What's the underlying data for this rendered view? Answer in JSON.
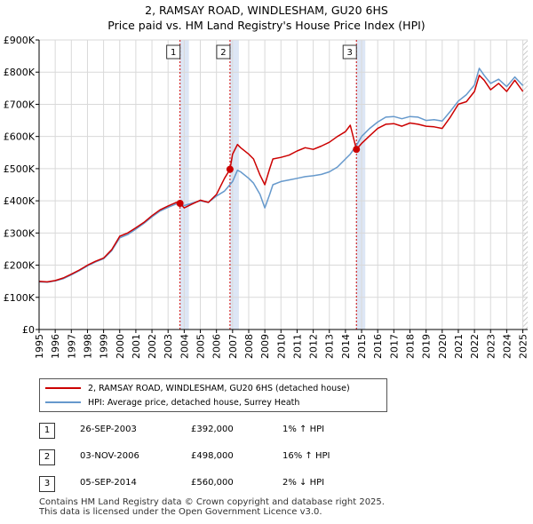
{
  "title": "2, RAMSAY ROAD, WINDLESHAM, GU20 6HS",
  "subtitle": "Price paid vs. HM Land Registry's House Price Index (HPI)",
  "chart_data": {
    "type": "line",
    "title": "2, RAMSAY ROAD, WINDLESHAM, GU20 6HS",
    "xlabel": "",
    "ylabel": "",
    "xlim": [
      1995,
      2025.3
    ],
    "ylim": [
      0,
      900000
    ],
    "y_ticks": [
      0,
      100000,
      200000,
      300000,
      400000,
      500000,
      600000,
      700000,
      800000,
      900000
    ],
    "y_tick_labels": [
      "£0",
      "£100K",
      "£200K",
      "£300K",
      "£400K",
      "£500K",
      "£600K",
      "£700K",
      "£800K",
      "£900K"
    ],
    "x_ticks": [
      "1995",
      "1996",
      "1997",
      "1998",
      "1999",
      "2000",
      "2001",
      "2002",
      "2003",
      "2004",
      "2005",
      "2006",
      "2007",
      "2008",
      "2009",
      "2010",
      "2011",
      "2012",
      "2013",
      "2014",
      "2015",
      "2016",
      "2017",
      "2018",
      "2019",
      "2020",
      "2021",
      "2022",
      "2023",
      "2024",
      "2025"
    ],
    "grid": true,
    "colors": {
      "property": "#cc0000",
      "hpi": "#6699cc",
      "marker_line": "#cc0000",
      "shade": "#dde6f5"
    },
    "series": [
      {
        "name": "2, RAMSAY ROAD, WINDLESHAM, GU20 6HS (detached house)",
        "x": [
          1995,
          1995.5,
          1996,
          1996.5,
          1997,
          1997.5,
          1998,
          1998.5,
          1999,
          1999.5,
          2000,
          2000.5,
          2001,
          2001.5,
          2002,
          2002.5,
          2003,
          2003.5,
          2003.74,
          2004,
          2004.5,
          2005,
          2005.5,
          2006,
          2006.5,
          2006.84,
          2007,
          2007.3,
          2007.5,
          2008,
          2008.3,
          2008.7,
          2009,
          2009.3,
          2009.5,
          2010,
          2010.5,
          2011,
          2011.5,
          2012,
          2012.5,
          2013,
          2013.5,
          2014,
          2014.3,
          2014.68,
          2015,
          2015.5,
          2016,
          2016.5,
          2017,
          2017.5,
          2018,
          2018.5,
          2019,
          2019.5,
          2020,
          2020.5,
          2021,
          2021.5,
          2022,
          2022.3,
          2022.6,
          2023,
          2023.5,
          2024,
          2024.5,
          2025
        ],
        "values": [
          150000,
          148000,
          152000,
          160000,
          172000,
          185000,
          200000,
          212000,
          222000,
          248000,
          290000,
          300000,
          316000,
          333000,
          354000,
          372000,
          384000,
          395000,
          392000,
          378000,
          390000,
          402000,
          395000,
          420000,
          470000,
          498000,
          545000,
          575000,
          565000,
          545000,
          530000,
          480000,
          450000,
          500000,
          530000,
          535000,
          542000,
          555000,
          565000,
          560000,
          570000,
          582000,
          600000,
          615000,
          635000,
          560000,
          578000,
          602000,
          625000,
          638000,
          640000,
          632000,
          642000,
          638000,
          632000,
          630000,
          625000,
          660000,
          700000,
          708000,
          740000,
          790000,
          775000,
          745000,
          765000,
          740000,
          775000,
          740000
        ]
      },
      {
        "name": "HPI: Average price, detached house, Surrey Heath",
        "x": [
          1995,
          1995.5,
          1996,
          1996.5,
          1997,
          1997.5,
          1998,
          1998.5,
          1999,
          1999.5,
          2000,
          2000.5,
          2001,
          2001.5,
          2002,
          2002.5,
          2003,
          2003.5,
          2004,
          2004.5,
          2005,
          2005.5,
          2006,
          2006.5,
          2007,
          2007.3,
          2007.5,
          2008,
          2008.3,
          2008.7,
          2009,
          2009.3,
          2009.5,
          2010,
          2010.5,
          2011,
          2011.5,
          2012,
          2012.5,
          2013,
          2013.5,
          2014,
          2014.3,
          2014.68,
          2015,
          2015.5,
          2016,
          2016.5,
          2017,
          2017.5,
          2018,
          2018.5,
          2019,
          2019.5,
          2020,
          2020.5,
          2021,
          2021.5,
          2022,
          2022.3,
          2022.6,
          2023,
          2023.5,
          2024,
          2024.5,
          2025
        ],
        "values": [
          148000,
          147000,
          151000,
          158000,
          170000,
          183000,
          198000,
          210000,
          220000,
          245000,
          285000,
          295000,
          312000,
          330000,
          350000,
          368000,
          380000,
          390000,
          385000,
          393000,
          400000,
          395000,
          415000,
          430000,
          460000,
          495000,
          490000,
          470000,
          455000,
          420000,
          378000,
          420000,
          450000,
          460000,
          465000,
          470000,
          475000,
          478000,
          482000,
          490000,
          505000,
          530000,
          545000,
          572000,
          600000,
          625000,
          645000,
          660000,
          662000,
          655000,
          662000,
          660000,
          650000,
          652000,
          648000,
          678000,
          710000,
          730000,
          760000,
          812000,
          790000,
          765000,
          778000,
          755000,
          785000,
          758000
        ]
      }
    ],
    "sales": [
      {
        "label": "1",
        "x": 2003.74,
        "value": 392000
      },
      {
        "label": "2",
        "x": 2006.84,
        "value": 498000
      },
      {
        "label": "3",
        "x": 2014.68,
        "value": 560000
      }
    ]
  },
  "legend": {
    "property_label": "2, RAMSAY ROAD, WINDLESHAM, GU20 6HS (detached house)",
    "hpi_label": "HPI: Average price, detached house, Surrey Heath"
  },
  "sales_table": [
    {
      "num": "1",
      "date": "26-SEP-2003",
      "price": "£392,000",
      "hpi": "1% ↑ HPI"
    },
    {
      "num": "2",
      "date": "03-NOV-2006",
      "price": "£498,000",
      "hpi": "16% ↑ HPI"
    },
    {
      "num": "3",
      "date": "05-SEP-2014",
      "price": "£560,000",
      "hpi": "2% ↓ HPI"
    }
  ],
  "footer": {
    "line1": "Contains HM Land Registry data © Crown copyright and database right 2025.",
    "line2": "This data is licensed under the Open Government Licence v3.0."
  }
}
